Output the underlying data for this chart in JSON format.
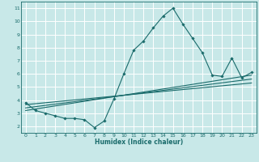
{
  "xlabel": "Humidex (Indice chaleur)",
  "background_color": "#c8e8e8",
  "grid_color": "#ffffff",
  "line_color": "#1a6b6b",
  "xlim": [
    -0.5,
    23.5
  ],
  "ylim": [
    1.5,
    11.5
  ],
  "xticks": [
    0,
    1,
    2,
    3,
    4,
    5,
    6,
    7,
    8,
    9,
    10,
    11,
    12,
    13,
    14,
    15,
    16,
    17,
    18,
    19,
    20,
    21,
    22,
    23
  ],
  "yticks": [
    2,
    3,
    4,
    5,
    6,
    7,
    8,
    9,
    10,
    11
  ],
  "main_x": [
    0,
    1,
    2,
    3,
    4,
    5,
    6,
    7,
    8,
    9,
    10,
    11,
    12,
    13,
    14,
    15,
    16,
    17,
    18,
    19,
    20,
    21,
    22,
    23
  ],
  "main_y": [
    3.8,
    3.2,
    3.0,
    2.8,
    2.6,
    2.6,
    2.5,
    1.9,
    2.4,
    4.1,
    6.0,
    7.8,
    8.5,
    9.5,
    10.4,
    11.0,
    9.8,
    8.7,
    7.6,
    5.9,
    5.8,
    7.2,
    5.7,
    6.1
  ],
  "line1_x": [
    0,
    23
  ],
  "line1_y": [
    3.65,
    5.3
  ],
  "line2_x": [
    0,
    23
  ],
  "line2_y": [
    3.4,
    5.6
  ],
  "line3_x": [
    0,
    23
  ],
  "line3_y": [
    3.2,
    5.9
  ]
}
